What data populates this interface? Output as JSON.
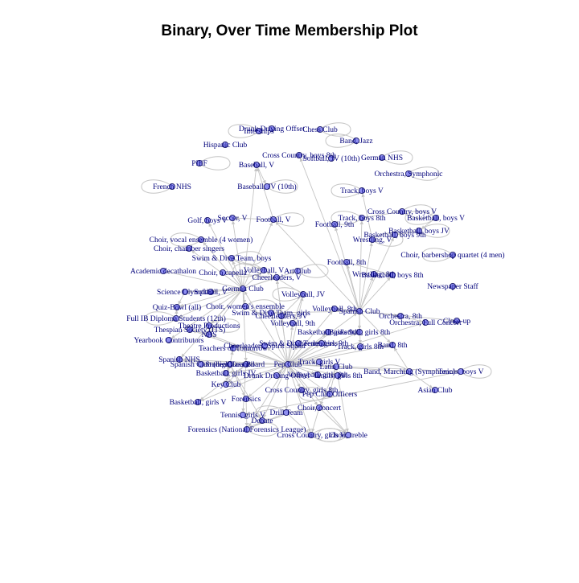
{
  "title": "Binary, Over Time Membership Plot",
  "colors": {
    "background": "#ffffff",
    "node_fill": "#8f8ff0",
    "node_stroke": "#1a1a66",
    "label": "#00007a",
    "edge": "#c4c4c4",
    "title": "#000000"
  },
  "nodes": [
    {
      "id": "drunk_driving_offset",
      "label": "Drunk Driving Offset"
    },
    {
      "id": "interships",
      "label": "Interships"
    },
    {
      "id": "chess_club",
      "label": "Chess Club"
    },
    {
      "id": "hispanic_club",
      "label": "Hispanic Club"
    },
    {
      "id": "band_jazz",
      "label": "Band, Jazz"
    },
    {
      "id": "cross_country_boys_8th",
      "label": "Cross Country, boys 8th"
    },
    {
      "id": "softball_jv_10th",
      "label": "Softball, JV (10th)"
    },
    {
      "id": "german_nhs",
      "label": "German NHS"
    },
    {
      "id": "pief",
      "label": "PIEF"
    },
    {
      "id": "baseball_v",
      "label": "Baseball, V"
    },
    {
      "id": "orchestra_symphonic",
      "label": "Orchestra, Symphonic"
    },
    {
      "id": "french_nhs",
      "label": "French NHS"
    },
    {
      "id": "baseball_jv_10th",
      "label": "Baseball, JV (10th)"
    },
    {
      "id": "track_boys_v",
      "label": "Track, boys V"
    },
    {
      "id": "cross_country_boys_v",
      "label": "Cross Country, boys V"
    },
    {
      "id": "basketball_boys_v",
      "label": "Basketball, boys V"
    },
    {
      "id": "golf_boys_v",
      "label": "Golf, boys V"
    },
    {
      "id": "soccer_v",
      "label": "Soccer, V"
    },
    {
      "id": "football_v",
      "label": "Football, V"
    },
    {
      "id": "track_boys_8th",
      "label": "Track, boys 8th"
    },
    {
      "id": "football_9th",
      "label": "Football, 9th"
    },
    {
      "id": "basketball_boys_9th",
      "label": "Basketball, boys 9th"
    },
    {
      "id": "basketball_boys_jv",
      "label": "Basketball, boys JV"
    },
    {
      "id": "choir_vocal_ensemble",
      "label": "Choir, vocal ensemble (4 women)"
    },
    {
      "id": "wrestling_v",
      "label": "Wrestling, V"
    },
    {
      "id": "choir_chamber_singers",
      "label": "Choir, chamber singers"
    },
    {
      "id": "choir_barbershop",
      "label": "Choir, barbershop quartet (4 men)"
    },
    {
      "id": "swim_dive_boys",
      "label": "Swim & Dive Team, boys"
    },
    {
      "id": "football_8th",
      "label": "Football, 8th"
    },
    {
      "id": "academic_decathalon",
      "label": "Academic decathalon"
    },
    {
      "id": "volleyball_v",
      "label": "Volleyball, V"
    },
    {
      "id": "art_club",
      "label": "Art Club"
    },
    {
      "id": "choir_acapella",
      "label": "Choir, a capella"
    },
    {
      "id": "wrestling_8th",
      "label": "Wrestling, 8th"
    },
    {
      "id": "basketball_boys_8th",
      "label": "Basketball, boys 8th"
    },
    {
      "id": "cheerleaders_v",
      "label": "Cheerleaders, V"
    },
    {
      "id": "newspaper_staff",
      "label": "Newspaper Staff"
    },
    {
      "id": "science_olympiad",
      "label": "Science Olympiad"
    },
    {
      "id": "softball_v",
      "label": "Softball, V"
    },
    {
      "id": "german_club",
      "label": "German Club"
    },
    {
      "id": "volleyball_jv",
      "label": "Volleyball, JV"
    },
    {
      "id": "choir_womens_ensemble",
      "label": "Choir, women's ensemble"
    },
    {
      "id": "quiz_bowl",
      "label": "Quiz-Bowl (all)"
    },
    {
      "id": "volleyball_8th",
      "label": "Volleyball, 8th"
    },
    {
      "id": "spanish_club",
      "label": "Spanish Club"
    },
    {
      "id": "swim_dive_girls",
      "label": "Swim & Dive Team, girls"
    },
    {
      "id": "cheerleaders_jv",
      "label": "Cheerleaders, JV"
    },
    {
      "id": "orchestra_8th",
      "label": "Orchestra, 8th"
    },
    {
      "id": "full_ib_diploma",
      "label": "Full IB Diploma Students (12th)"
    },
    {
      "id": "volleyball_9th",
      "label": "Volleyball, 9th"
    },
    {
      "id": "orchestra_full_concert",
      "label": "Orchestra, Full Concert"
    },
    {
      "id": "close_up",
      "label": "Close-up"
    },
    {
      "id": "theatre_productions",
      "label": "Theatre Productions"
    },
    {
      "id": "basketball_girls_8th",
      "label": "Basketball, girls 8th"
    },
    {
      "id": "thespian_society",
      "label": "Thespian Society (ITS)"
    },
    {
      "id": "nhs",
      "label": "NHS"
    },
    {
      "id": "basketball_girls_9th",
      "label": "Basketball, girls 9th"
    },
    {
      "id": "yearbook_contributors",
      "label": "Yearbook Contributors"
    },
    {
      "id": "cheerleaders_spirit_squad",
      "label": "Cheerleaders, Spirit Squad"
    },
    {
      "id": "swim_dive_girls_2",
      "label": "Swim & Dive Team, girls"
    },
    {
      "id": "cheerleaders_9th",
      "label": "Cheerleaders, 9th"
    },
    {
      "id": "teachers_of_tomorrow",
      "label": "Teachers of Tomorrow"
    },
    {
      "id": "track_girls_8th",
      "label": "Track, girls 8th"
    },
    {
      "id": "band_8th",
      "label": "Band, 8th"
    },
    {
      "id": "spanish_nhs",
      "label": "Spanish NHS"
    },
    {
      "id": "spanish_club_high",
      "label": "Spanish Club (high)"
    },
    {
      "id": "student_council",
      "label": "Student Council"
    },
    {
      "id": "pep_club",
      "label": "Pep Club"
    },
    {
      "id": "track_girls_v",
      "label": "Track, girls V"
    },
    {
      "id": "class_board",
      "label": "Class Board"
    },
    {
      "id": "latin_club",
      "label": "Latin Club"
    },
    {
      "id": "basketball_girls_jv",
      "label": "Basketball, girls JV"
    },
    {
      "id": "band_marching",
      "label": "Band, Marching (Symphonic)"
    },
    {
      "id": "tennis_boys_v",
      "label": "Tennis, boys V"
    },
    {
      "id": "drunk_driving_offset_2",
      "label": "Drunk Driving Offset"
    },
    {
      "id": "tennis_girls_8th",
      "label": "Tennis, girls 8th"
    },
    {
      "id": "volleyball_girls_9th",
      "label": "Volleyball, girls 9th"
    },
    {
      "id": "key_club",
      "label": "Key Club"
    },
    {
      "id": "cross_country_girls_8th",
      "label": "Cross Country, girls 8th"
    },
    {
      "id": "pep_club_officers",
      "label": "Pep Club Officers"
    },
    {
      "id": "asian_club",
      "label": "Asian Club"
    },
    {
      "id": "forensics",
      "label": "Forensics"
    },
    {
      "id": "basketball_girls_v",
      "label": "Basketball, girls V"
    },
    {
      "id": "choir_concert",
      "label": "Choir, concert"
    },
    {
      "id": "drill_team",
      "label": "Drill Team"
    },
    {
      "id": "tennis_girls_v",
      "label": "Tennis, girls V"
    },
    {
      "id": "debate",
      "label": "Debate"
    },
    {
      "id": "forensics_national",
      "label": "Forensics (National Forensics League)"
    },
    {
      "id": "cross_country_girls_v",
      "label": "Cross Country, girls V"
    },
    {
      "id": "choir_treble",
      "label": "Choir, treble"
    }
  ],
  "edges": [
    [
      "german_club",
      "swim_dive_boys"
    ],
    [
      "german_club",
      "golf_boys_v"
    ],
    [
      "german_club",
      "soccer_v"
    ],
    [
      "german_club",
      "baseball_v"
    ],
    [
      "german_club",
      "academic_decathalon"
    ],
    [
      "german_club",
      "science_olympiad"
    ],
    [
      "german_club",
      "quiz_bowl"
    ],
    [
      "german_club",
      "full_ib_diploma"
    ],
    [
      "german_club",
      "choir_chamber_singers"
    ],
    [
      "german_club",
      "choir_vocal_ensemble"
    ],
    [
      "german_club",
      "football_v"
    ],
    [
      "german_club",
      "volleyball_v"
    ],
    [
      "german_club",
      "art_club"
    ],
    [
      "german_club",
      "theatre_productions"
    ],
    [
      "german_club",
      "nhs"
    ],
    [
      "german_club",
      "yearbook_contributors"
    ],
    [
      "german_club",
      "spanish_nhs"
    ],
    [
      "german_club",
      "cheerleaders_v"
    ],
    [
      "german_club",
      "choir_womens_ensemble"
    ],
    [
      "german_club",
      "softball_v"
    ],
    [
      "german_club",
      "class_board"
    ],
    [
      "pep_club",
      "teachers_of_tomorrow"
    ],
    [
      "pep_club",
      "cheerleaders_spirit_squad"
    ],
    [
      "pep_club",
      "swim_dive_girls_2"
    ],
    [
      "pep_club",
      "student_council"
    ],
    [
      "pep_club",
      "class_board"
    ],
    [
      "pep_club",
      "basketball_girls_jv"
    ],
    [
      "pep_club",
      "key_club"
    ],
    [
      "pep_club",
      "forensics"
    ],
    [
      "pep_club",
      "basketball_girls_v"
    ],
    [
      "pep_club",
      "tennis_boys_v"
    ],
    [
      "pep_club",
      "drunk_driving_offset_2"
    ],
    [
      "pep_club",
      "cross_country_girls_8th"
    ],
    [
      "pep_club",
      "drill_team"
    ],
    [
      "pep_club",
      "debate"
    ],
    [
      "pep_club",
      "forensics_national"
    ],
    [
      "pep_club",
      "cross_country_girls_v"
    ],
    [
      "pep_club",
      "choir_treble"
    ],
    [
      "pep_club",
      "choir_concert"
    ],
    [
      "pep_club",
      "tennis_girls_8th"
    ],
    [
      "pep_club",
      "volleyball_girls_9th"
    ],
    [
      "pep_club",
      "track_girls_v"
    ],
    [
      "pep_club",
      "latin_club"
    ],
    [
      "pep_club",
      "pep_club_officers"
    ],
    [
      "pep_club",
      "cheerleaders_9th"
    ],
    [
      "pep_club",
      "track_girls_8th"
    ],
    [
      "pep_club",
      "basketball_girls_9th"
    ],
    [
      "pep_club",
      "basketball_girls_8th"
    ],
    [
      "pep_club",
      "cheerleaders_jv"
    ],
    [
      "pep_club",
      "volleyball_9th"
    ],
    [
      "pep_club",
      "swim_dive_girls"
    ],
    [
      "pep_club",
      "spanish_club_high"
    ],
    [
      "pep_club",
      "spanish_nhs"
    ],
    [
      "pep_club",
      "nhs"
    ],
    [
      "pep_club",
      "thespian_society"
    ],
    [
      "pep_club",
      "volleyball_jv"
    ],
    [
      "pep_club",
      "cheerleaders_v"
    ],
    [
      "pep_club",
      "volleyball_8th"
    ],
    [
      "pep_club",
      "spanish_club"
    ],
    [
      "pep_club",
      "band_8th"
    ],
    [
      "pep_club",
      "band_marching"
    ],
    [
      "pep_club",
      "orchestra_full_concert"
    ],
    [
      "pep_club",
      "german_club"
    ],
    [
      "spanish_club",
      "football_8th"
    ],
    [
      "spanish_club",
      "wrestling_8th"
    ],
    [
      "spanish_club",
      "basketball_boys_8th"
    ],
    [
      "spanish_club",
      "wrestling_v"
    ],
    [
      "spanish_club",
      "basketball_boys_9th"
    ],
    [
      "spanish_club",
      "track_boys_8th"
    ],
    [
      "spanish_club",
      "football_9th"
    ],
    [
      "spanish_club",
      "football_v"
    ],
    [
      "spanish_club",
      "cross_country_boys_8th"
    ],
    [
      "spanish_club",
      "orchestra_8th"
    ],
    [
      "spanish_club",
      "volleyball_8th"
    ],
    [
      "spanish_club",
      "basketball_girls_8th"
    ],
    [
      "spanish_club",
      "band_8th"
    ],
    [
      "spanish_club",
      "track_girls_8th"
    ],
    [
      "spanish_club",
      "swim_dive_girls"
    ],
    [
      "spanish_club",
      "close_up"
    ],
    [
      "student_council",
      "forensics"
    ],
    [
      "student_council",
      "debate"
    ],
    [
      "student_council",
      "key_club"
    ],
    [
      "student_council",
      "basketball_girls_jv"
    ],
    [
      "student_council",
      "spanish_nhs"
    ],
    [
      "student_council",
      "teachers_of_tomorrow"
    ],
    [
      "class_board",
      "basketball_girls_v"
    ],
    [
      "class_board",
      "tennis_girls_v"
    ],
    [
      "class_board",
      "key_club"
    ],
    [
      "latin_club",
      "choir_concert"
    ],
    [
      "latin_club",
      "pep_club_officers"
    ],
    [
      "latin_club",
      "choir_treble"
    ],
    [
      "drill_team",
      "forensics_national"
    ],
    [
      "drill_team",
      "cross_country_girls_v"
    ],
    [
      "drill_team",
      "choir_concert"
    ],
    [
      "band_marching",
      "asian_club"
    ],
    [
      "band_marching",
      "band_8th"
    ],
    [
      "choir_concert",
      "choir_treble"
    ],
    [
      "choir_concert",
      "cross_country_girls_v"
    ],
    [
      "volleyball_jv",
      "volleyball_v"
    ],
    [
      "volleyball_jv",
      "volleyball_9th"
    ],
    [
      "volleyball_jv",
      "cheerleaders_jv"
    ],
    [
      "cheerleaders_v",
      "cheerleaders_jv"
    ],
    [
      "cheerleaders_v",
      "choir_acapella"
    ],
    [
      "football_v",
      "soccer_v"
    ],
    [
      "football_v",
      "baseball_v"
    ],
    [
      "baseball_v",
      "baseball_jv_10th"
    ],
    [
      "wrestling_v",
      "track_boys_v"
    ],
    [
      "football_8th",
      "basketball_boys_8th"
    ],
    [
      "basketball_boys_jv",
      "basketball_boys_9th"
    ],
    [
      "basketball_boys_v",
      "basketball_boys_jv"
    ],
    [
      "cross_country_boys_v",
      "track_boys_8th"
    ],
    [
      "swim_dive_boys",
      "volleyball_v"
    ],
    [
      "nhs",
      "theatre_productions"
    ],
    [
      "nhs",
      "thespian_society"
    ],
    [
      "science_olympiad",
      "quiz_bowl"
    ],
    [
      "full_ib_diploma",
      "quiz_bowl"
    ],
    [
      "orchestra_8th",
      "orchestra_full_concert"
    ],
    [
      "spanish_club_high",
      "spanish_nhs"
    ],
    [
      "forensics",
      "forensics_national"
    ],
    [
      "tennis_boys_v",
      "tennis_girls_v"
    ]
  ]
}
